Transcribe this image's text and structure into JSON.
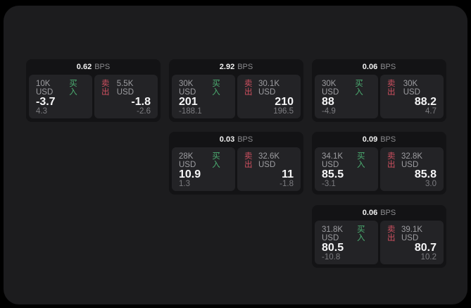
{
  "labels": {
    "buy": "买入",
    "sell": "卖出",
    "bps_suffix": "BPS"
  },
  "colors": {
    "buy": "#4caf72",
    "sell": "#cf5060",
    "surface": "#1c1c1e",
    "card": "#131315",
    "panel": "#232326"
  },
  "cards": [
    {
      "bps": "0.62",
      "buy": {
        "amount": "10K USD",
        "value": "-3.7",
        "sub": "4.3"
      },
      "sell": {
        "amount": "5.5K USD",
        "value": "-1.8",
        "sub": "-2.6"
      }
    },
    {
      "bps": "2.92",
      "buy": {
        "amount": "30K USD",
        "value": "201",
        "sub": "-188.1"
      },
      "sell": {
        "amount": "30.1K USD",
        "value": "210",
        "sub": "196.5"
      }
    },
    {
      "bps": "0.06",
      "buy": {
        "amount": "30K USD",
        "value": "88",
        "sub": "-4.9"
      },
      "sell": {
        "amount": "30K USD",
        "value": "88.2",
        "sub": "4.7"
      }
    },
    {
      "bps": "0.03",
      "buy": {
        "amount": "28K USD",
        "value": "10.9",
        "sub": "1.3"
      },
      "sell": {
        "amount": "32.6K USD",
        "value": "11",
        "sub": "-1.8"
      }
    },
    {
      "bps": "0.09",
      "buy": {
        "amount": "34.1K USD",
        "value": "85.5",
        "sub": "-3.1"
      },
      "sell": {
        "amount": "32.8K USD",
        "value": "85.8",
        "sub": "3.0"
      }
    },
    {
      "bps": "0.06",
      "buy": {
        "amount": "31.8K USD",
        "value": "80.5",
        "sub": "-10.8"
      },
      "sell": {
        "amount": "39.1K USD",
        "value": "80.7",
        "sub": "10.2"
      }
    }
  ]
}
